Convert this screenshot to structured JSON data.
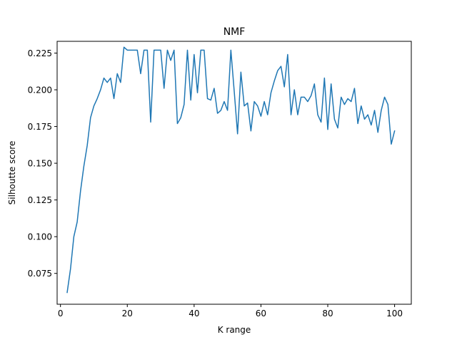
{
  "chart_data": {
    "type": "line",
    "title": "NMF",
    "xlabel": "K range",
    "ylabel": "Silhoutte score",
    "xlim": [
      -1,
      105
    ],
    "ylim": [
      0.054,
      0.233
    ],
    "xticks": [
      0,
      20,
      40,
      60,
      80,
      100
    ],
    "yticks": [
      0.075,
      0.1,
      0.125,
      0.15,
      0.175,
      0.2,
      0.225
    ],
    "ytick_labels": [
      "0.075",
      "0.100",
      "0.125",
      "0.150",
      "0.175",
      "0.200",
      "0.225"
    ],
    "xtick_labels": [
      "0",
      "20",
      "40",
      "60",
      "80",
      "100"
    ],
    "grid": false,
    "series": [
      {
        "color": "#1f77b4",
        "x": [
          2,
          3,
          4,
          5,
          6,
          7,
          8,
          9,
          10,
          11,
          12,
          13,
          14,
          15,
          16,
          17,
          18,
          19,
          20,
          21,
          22,
          23,
          24,
          25,
          26,
          27,
          28,
          29,
          30,
          31,
          32,
          33,
          34,
          35,
          36,
          37,
          38,
          39,
          40,
          41,
          42,
          43,
          44,
          45,
          46,
          47,
          48,
          49,
          50,
          51,
          52,
          53,
          54,
          55,
          56,
          57,
          58,
          59,
          60,
          61,
          62,
          63,
          64,
          65,
          66,
          67,
          68,
          69,
          70,
          71,
          72,
          73,
          74,
          75,
          76,
          77,
          78,
          79,
          80,
          81,
          82,
          83,
          84,
          85,
          86,
          87,
          88,
          89,
          90,
          91,
          92,
          93,
          94,
          95,
          96,
          97,
          98,
          99,
          100
        ],
        "y": [
          0.062,
          0.078,
          0.1,
          0.11,
          0.131,
          0.148,
          0.162,
          0.181,
          0.189,
          0.194,
          0.2,
          0.208,
          0.205,
          0.208,
          0.194,
          0.211,
          0.205,
          0.229,
          0.227,
          0.227,
          0.227,
          0.227,
          0.211,
          0.227,
          0.227,
          0.178,
          0.227,
          0.227,
          0.227,
          0.201,
          0.227,
          0.22,
          0.227,
          0.177,
          0.181,
          0.19,
          0.227,
          0.193,
          0.224,
          0.198,
          0.227,
          0.227,
          0.194,
          0.193,
          0.201,
          0.184,
          0.186,
          0.192,
          0.186,
          0.227,
          0.199,
          0.17,
          0.212,
          0.189,
          0.191,
          0.172,
          0.192,
          0.189,
          0.182,
          0.192,
          0.183,
          0.198,
          0.206,
          0.213,
          0.216,
          0.202,
          0.224,
          0.183,
          0.2,
          0.183,
          0.195,
          0.195,
          0.192,
          0.196,
          0.204,
          0.183,
          0.178,
          0.208,
          0.173,
          0.204,
          0.18,
          0.174,
          0.195,
          0.19,
          0.194,
          0.192,
          0.201,
          0.177,
          0.189,
          0.18,
          0.183,
          0.176,
          0.186,
          0.171,
          0.186,
          0.195,
          0.19,
          0.163,
          0.172
        ]
      }
    ]
  }
}
